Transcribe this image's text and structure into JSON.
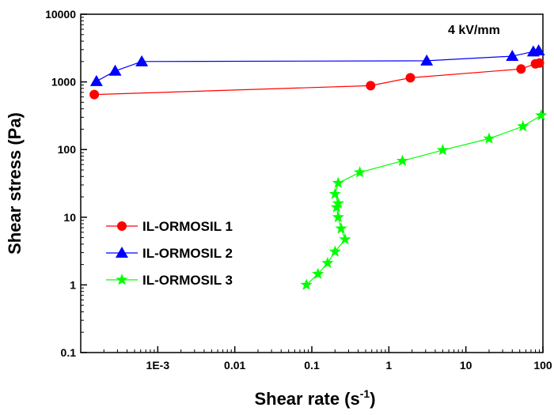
{
  "chart_data": {
    "type": "scatter",
    "title": "",
    "annotation": "4 kV/mm",
    "xlabel": "Shear rate (s",
    "xlabel_superscript": "-1",
    "xlabel_close": ")",
    "ylabel": "Shear stress (Pa)",
    "xscale": "log",
    "yscale": "log",
    "xlim": [
      0.0001,
      100
    ],
    "ylim": [
      0.1,
      10000
    ],
    "x_ticks": [
      {
        "value": 0.001,
        "label": "1E-3"
      },
      {
        "value": 0.01,
        "label": "0.01"
      },
      {
        "value": 0.1,
        "label": "0.1"
      },
      {
        "value": 1,
        "label": "1"
      },
      {
        "value": 10,
        "label": "10"
      },
      {
        "value": 100,
        "label": "100"
      }
    ],
    "y_ticks": [
      {
        "value": 0.1,
        "label": "0.1"
      },
      {
        "value": 1,
        "label": "1"
      },
      {
        "value": 10,
        "label": "10"
      },
      {
        "value": 100,
        "label": "100"
      },
      {
        "value": 1000,
        "label": "1000"
      },
      {
        "value": 10000,
        "label": "10000"
      }
    ],
    "grid": false,
    "legend_position": "middle-left",
    "series": [
      {
        "name": "IL-ORMOSIL 1",
        "color": "#ff0000",
        "marker": "circle",
        "x": [
          0.00015,
          0.58,
          1.9,
          52,
          80,
          90
        ],
        "y": [
          650,
          880,
          1150,
          1550,
          1850,
          1900
        ]
      },
      {
        "name": "IL-ORMOSIL 2",
        "color": "#0000ff",
        "marker": "triangle",
        "x": [
          0.00016,
          0.00028,
          0.00062,
          3.1,
          40,
          75,
          88
        ],
        "y": [
          1020,
          1450,
          2000,
          2050,
          2400,
          2800,
          2900
        ]
      },
      {
        "name": "IL-ORMOSIL 3",
        "color": "#00ff00",
        "marker": "star",
        "x": [
          0.085,
          0.12,
          0.16,
          0.2,
          0.27,
          0.24,
          0.22,
          0.21,
          0.22,
          0.2,
          0.22,
          0.42,
          1.5,
          5,
          20,
          55,
          95
        ],
        "y": [
          1.0,
          1.45,
          2.1,
          3.1,
          4.7,
          6.8,
          10,
          14,
          16,
          22,
          32,
          46,
          68,
          98,
          145,
          220,
          320
        ]
      }
    ]
  }
}
